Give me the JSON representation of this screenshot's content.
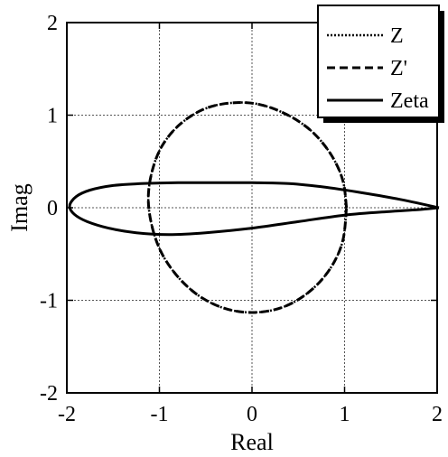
{
  "chart_data": {
    "type": "line",
    "title": "",
    "xlabel": "Real",
    "ylabel": "Imag",
    "xlim": [
      -2,
      2
    ],
    "ylim": [
      -2,
      2
    ],
    "xticks": [
      "-2",
      "-1",
      "0",
      "1",
      "2"
    ],
    "yticks": [
      "-2",
      "-1",
      "0",
      "1",
      "2"
    ],
    "grid": true,
    "legend_position": "top-right",
    "series": [
      {
        "name": "Z",
        "style": "dotted",
        "x": [
          1.02,
          0.98,
          0.85,
          0.64,
          0.37,
          0.06,
          -0.25,
          -0.53,
          -0.78,
          -0.97,
          -1.08,
          -1.12,
          -1.07,
          -0.96,
          -0.77,
          -0.53,
          -0.25,
          0.06,
          0.37,
          0.64,
          0.85,
          0.98,
          1.02
        ],
        "y": [
          0.0,
          0.3,
          0.58,
          0.83,
          1.01,
          1.12,
          1.13,
          1.06,
          0.9,
          0.67,
          0.39,
          0.08,
          -0.24,
          -0.52,
          -0.78,
          -0.98,
          -1.1,
          -1.13,
          -1.06,
          -0.89,
          -0.65,
          -0.36,
          0.0
        ]
      },
      {
        "name": "Z'",
        "style": "dashed",
        "x": [
          1.02,
          0.98,
          0.85,
          0.64,
          0.37,
          0.06,
          -0.25,
          -0.53,
          -0.78,
          -0.97,
          -1.08,
          -1.12,
          -1.07,
          -0.96,
          -0.77,
          -0.53,
          -0.25,
          0.06,
          0.37,
          0.64,
          0.85,
          0.98,
          1.02
        ],
        "y": [
          0.0,
          0.3,
          0.58,
          0.83,
          1.01,
          1.12,
          1.13,
          1.06,
          0.9,
          0.67,
          0.39,
          0.08,
          -0.24,
          -0.52,
          -0.78,
          -0.98,
          -1.1,
          -1.13,
          -1.06,
          -0.89,
          -0.65,
          -0.36,
          0.0
        ]
      },
      {
        "name": "Zeta",
        "style": "solid",
        "x": [
          2.02,
          1.6,
          1.2,
          0.8,
          0.4,
          0.0,
          -0.4,
          -0.8,
          -1.2,
          -1.5,
          -1.75,
          -1.9,
          -1.97,
          -1.92,
          -1.78,
          -1.55,
          -1.25,
          -0.9,
          -0.5,
          0.0,
          0.5,
          1.0,
          1.5,
          1.8,
          2.02
        ],
        "y": [
          0.0,
          0.09,
          0.16,
          0.22,
          0.26,
          0.27,
          0.27,
          0.27,
          0.26,
          0.24,
          0.19,
          0.12,
          0.02,
          -0.07,
          -0.15,
          -0.22,
          -0.27,
          -0.29,
          -0.27,
          -0.22,
          -0.15,
          -0.08,
          -0.04,
          -0.02,
          0.0
        ]
      }
    ]
  }
}
